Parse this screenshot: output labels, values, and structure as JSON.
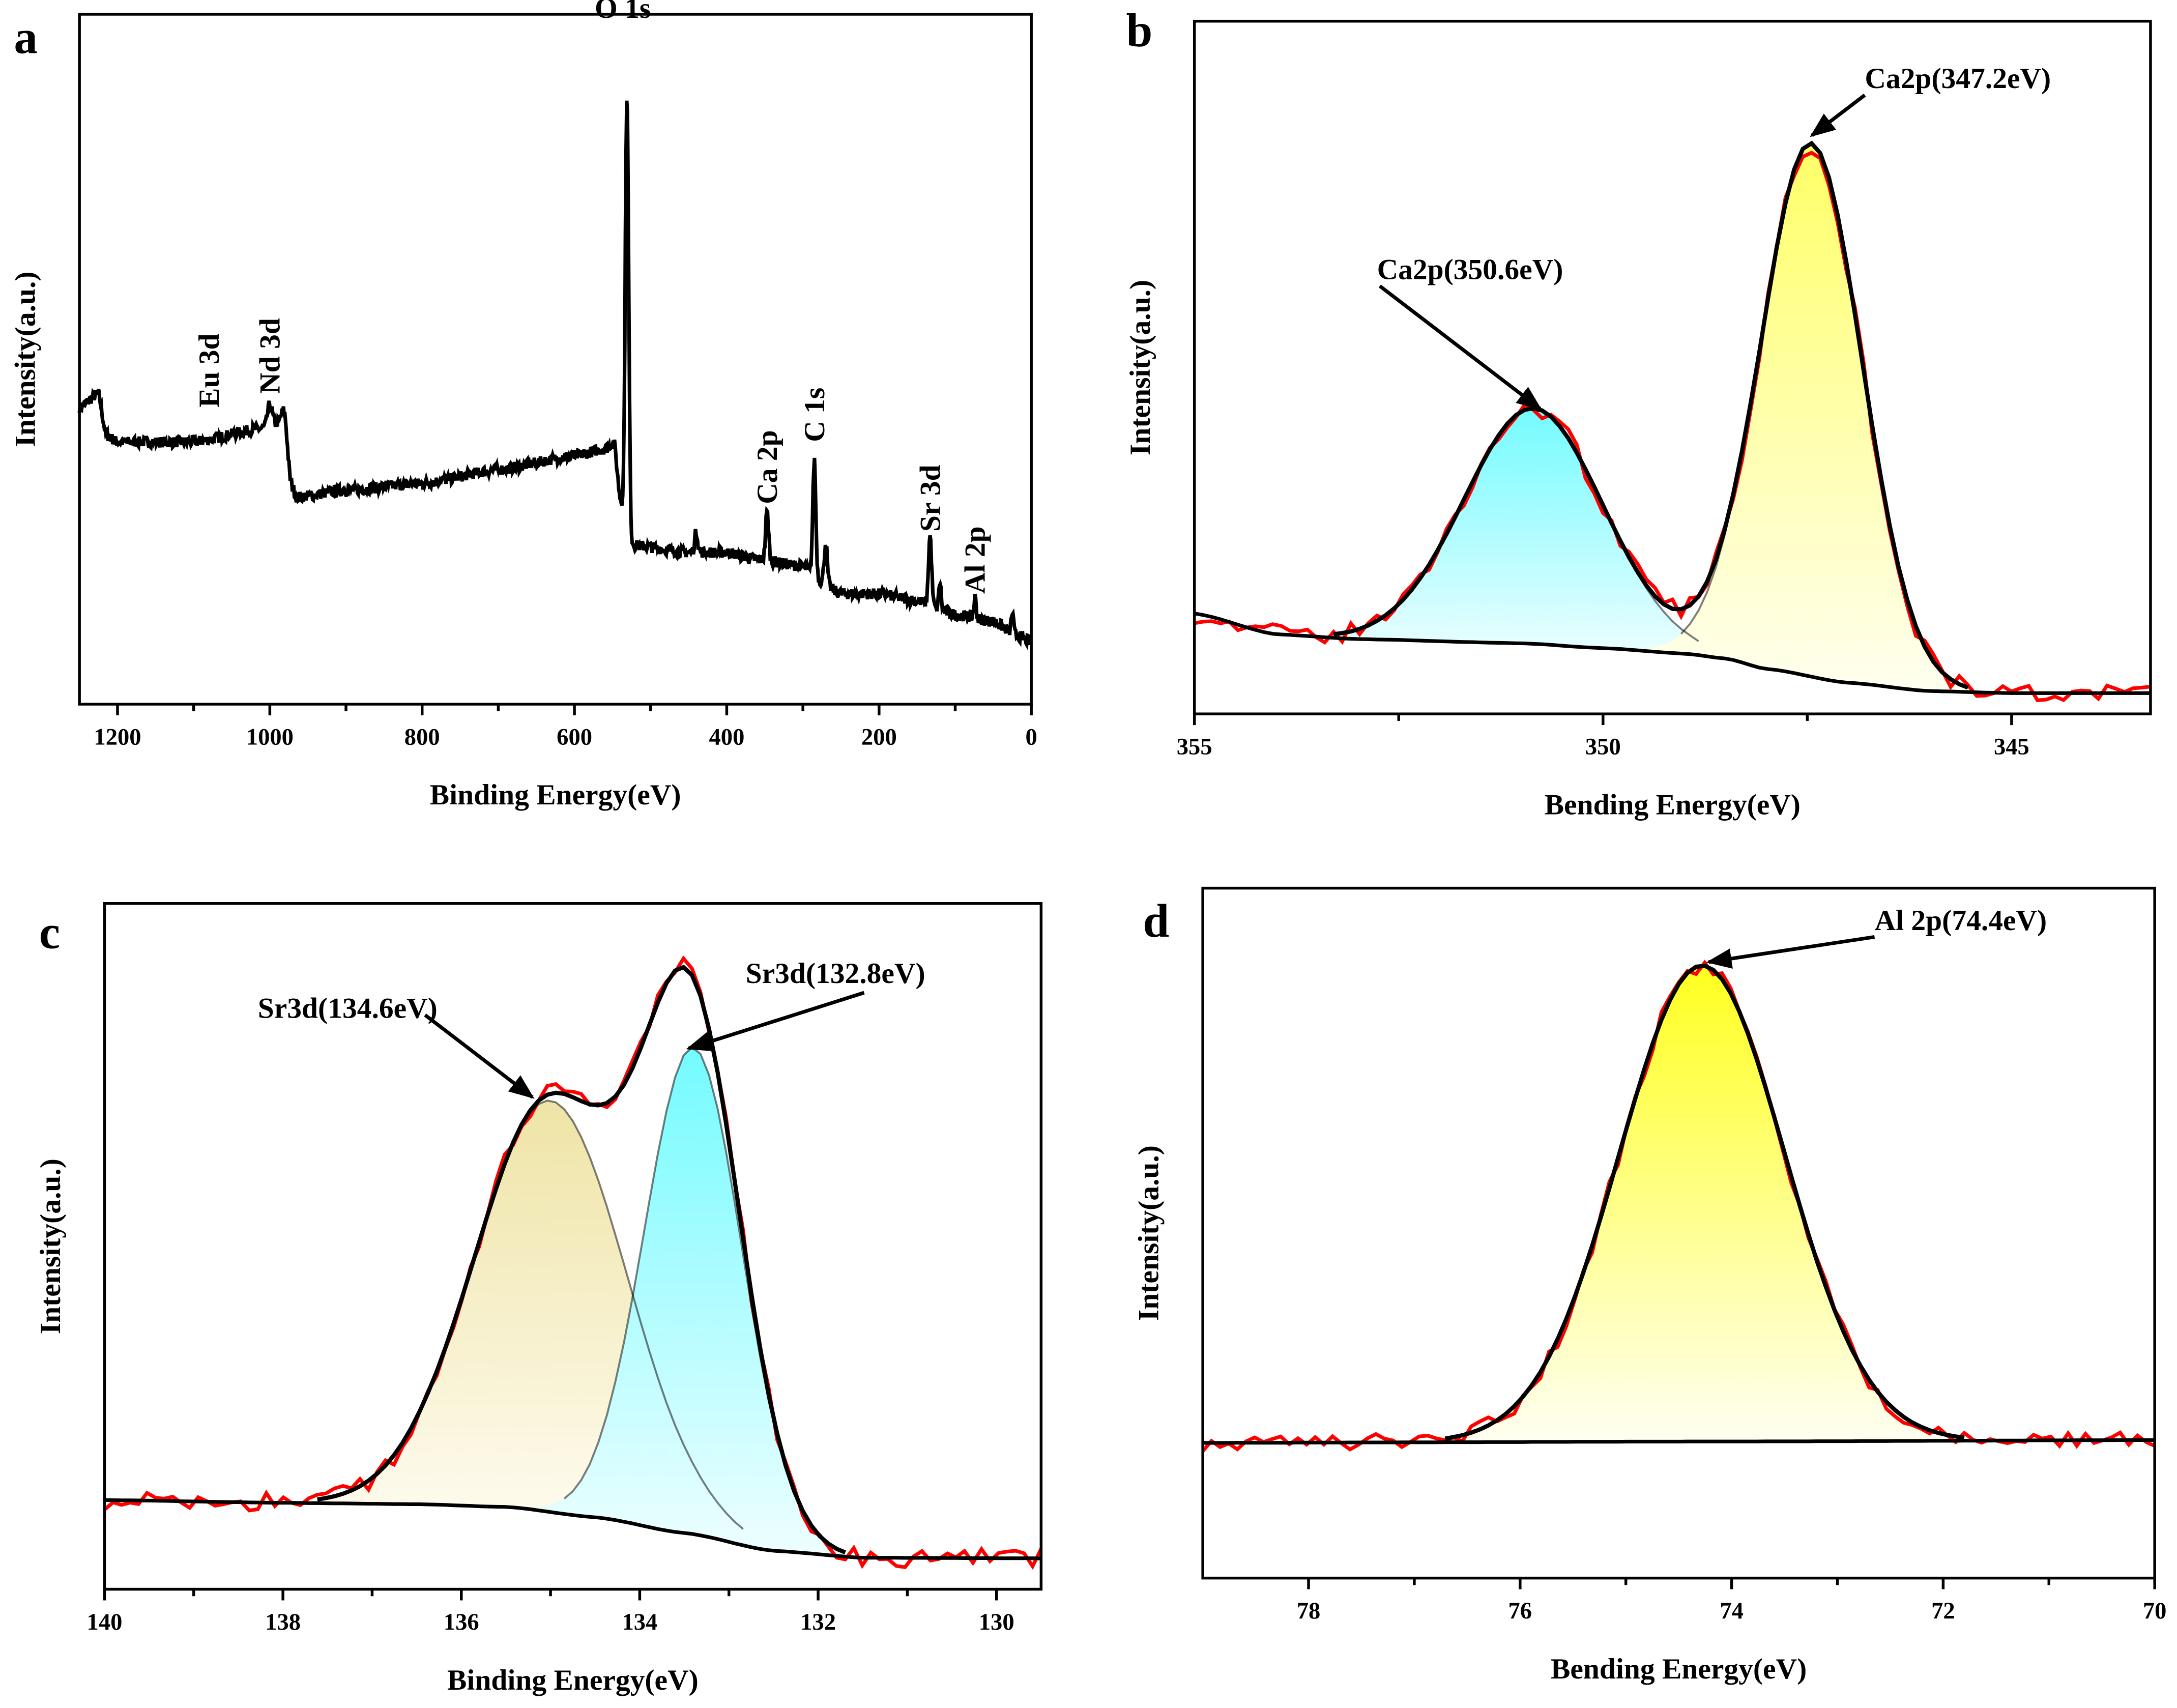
{
  "colors": {
    "raw": "#ff0000",
    "fit": "#000000",
    "cyan": "#7ffcff",
    "yellow": "#ffff70",
    "khaki": "#f0e6a8",
    "bright_yellow": "#ffff30"
  },
  "chart_data": [
    {
      "panel": "a",
      "type": "line",
      "xlabel": "Binding Energy(eV)",
      "ylabel": "Intensity(a.u.)",
      "xlim": [
        1250,
        0
      ],
      "ylim": [
        0,
        100
      ],
      "x_reversed": true,
      "xticks": [
        1200,
        1000,
        800,
        600,
        400,
        200,
        0
      ],
      "baseline": [
        [
          1250,
          43
        ],
        [
          1225,
          45
        ],
        [
          1215,
          39
        ],
        [
          1200,
          38
        ],
        [
          1100,
          38
        ],
        [
          1010,
          40
        ],
        [
          985,
          41
        ],
        [
          972,
          32
        ],
        [
          965,
          30
        ],
        [
          900,
          31
        ],
        [
          800,
          32
        ],
        [
          700,
          34
        ],
        [
          600,
          36
        ],
        [
          560,
          37
        ],
        [
          548,
          38
        ],
        [
          540,
          30
        ],
        [
          530,
          24
        ],
        [
          520,
          23
        ],
        [
          450,
          22
        ],
        [
          400,
          22
        ],
        [
          360,
          21
        ],
        [
          300,
          20
        ],
        [
          280,
          18
        ],
        [
          250,
          16
        ],
        [
          200,
          16
        ],
        [
          150,
          15
        ],
        [
          100,
          13
        ],
        [
          50,
          12
        ],
        [
          20,
          10
        ],
        [
          0,
          9
        ]
      ],
      "peaks": [
        {
          "center": 531,
          "height": 64,
          "width": 2.2
        },
        {
          "center": 1000,
          "height": 3,
          "width": 3
        },
        {
          "center": 980,
          "height": 4,
          "width": 3
        },
        {
          "center": 347,
          "height": 7,
          "width": 2
        },
        {
          "center": 285,
          "height": 17,
          "width": 2
        },
        {
          "center": 270,
          "height": 6,
          "width": 2
        },
        {
          "center": 440,
          "height": 3,
          "width": 2
        },
        {
          "center": 133,
          "height": 10,
          "width": 2
        },
        {
          "center": 120,
          "height": 4,
          "width": 1.5
        },
        {
          "center": 74,
          "height": 3,
          "width": 1.5
        },
        {
          "center": 25,
          "height": 3,
          "width": 1.5
        }
      ],
      "noise_amplitude": 0.8,
      "annotations": [
        {
          "text": "O 1s",
          "x": 531,
          "y": 92,
          "rotated": false
        },
        {
          "text": "Eu 3d",
          "x": 1080,
          "y": 43,
          "rotated": true
        },
        {
          "text": "Nd 3d",
          "x": 1000,
          "y": 45,
          "rotated": true
        },
        {
          "text": "Ca 2p",
          "x": 347,
          "y": 29,
          "rotated": true
        },
        {
          "text": "C 1s",
          "x": 285,
          "y": 38,
          "rotated": true
        },
        {
          "text": "Sr 3d",
          "x": 133,
          "y": 25,
          "rotated": true
        },
        {
          "text": "Al 2p",
          "x": 74,
          "y": 16,
          "rotated": true
        }
      ]
    },
    {
      "panel": "b",
      "type": "area",
      "xlabel": "Bending Energy(eV)",
      "ylabel": "Intensity(a.u.)",
      "xlim": [
        355,
        343.3
      ],
      "ylim": [
        0,
        100
      ],
      "x_reversed": true,
      "xticks": [
        355,
        350,
        345
      ],
      "baseline": [
        [
          355,
          14.5
        ],
        [
          354,
          11.5
        ],
        [
          353,
          10.8
        ],
        [
          351,
          10.2
        ],
        [
          350,
          9.5
        ],
        [
          349,
          8.7
        ],
        [
          348.5,
          8
        ],
        [
          348,
          6.5
        ],
        [
          347,
          4.5
        ],
        [
          346,
          3.3
        ],
        [
          345,
          3
        ],
        [
          343.3,
          3
        ]
      ],
      "components": [
        {
          "name": "Ca2p(350.6eV)",
          "center": 350.85,
          "amplitude": 34,
          "sigma": 0.85,
          "fill": "cyan"
        },
        {
          "name": "Ca2p(347.2eV)",
          "center": 347.45,
          "amplitude": 77,
          "sigma": 0.62,
          "fill": "yellow"
        }
      ],
      "noise_amplitude": 1.4,
      "annotations": [
        {
          "text": "Ca2p(350.6eV)",
          "target": 350.85
        },
        {
          "text": "Ca2p(347.2eV)",
          "target": 347.45
        }
      ]
    },
    {
      "panel": "c",
      "type": "area",
      "xlabel": "Binding Energy(eV)",
      "ylabel": "Intensity(a.u.)",
      "xlim": [
        140,
        129.5
      ],
      "ylim": [
        0,
        100
      ],
      "x_reversed": true,
      "xticks": [
        140,
        138,
        136,
        134,
        132,
        130
      ],
      "baseline": [
        [
          140,
          13
        ],
        [
          138,
          12.6
        ],
        [
          136.5,
          12.4
        ],
        [
          135.5,
          12
        ],
        [
          134.5,
          10.5
        ],
        [
          133.5,
          8.2
        ],
        [
          132.5,
          5.6
        ],
        [
          131.5,
          4.6
        ],
        [
          129.5,
          4.5
        ]
      ],
      "components": [
        {
          "name": "Sr3d(134.6eV)",
          "center": 135.0,
          "amplitude": 60,
          "sigma": 0.85,
          "fill": "khaki"
        },
        {
          "name": "Sr3d(132.8eV)",
          "center": 133.4,
          "amplitude": 71,
          "sigma": 0.55,
          "fill": "cyan"
        }
      ],
      "noise_amplitude": 1.4,
      "annotations": [
        {
          "text": "Sr3d(134.6eV)",
          "target": 135.0
        },
        {
          "text": "Sr3d(132.8eV)",
          "target": 133.4
        }
      ]
    },
    {
      "panel": "d",
      "type": "area",
      "xlabel": "Bending Energy(eV)",
      "ylabel": "Intensity(a.u.)",
      "xlim": [
        79,
        70
      ],
      "ylim": [
        0,
        100
      ],
      "x_reversed": true,
      "xticks": [
        78,
        76,
        74,
        72,
        70
      ],
      "baseline": [
        [
          79,
          19.6
        ],
        [
          74,
          19.8
        ],
        [
          70,
          20
        ]
      ],
      "components": [
        {
          "name": "Al 2p(74.4eV)",
          "center": 74.28,
          "amplitude": 69,
          "sigma": 0.78,
          "fill": "bright_yellow"
        }
      ],
      "noise_amplitude": 1.2,
      "annotations": [
        {
          "text": "Al 2p(74.4eV)",
          "target": 74.28
        }
      ]
    }
  ]
}
